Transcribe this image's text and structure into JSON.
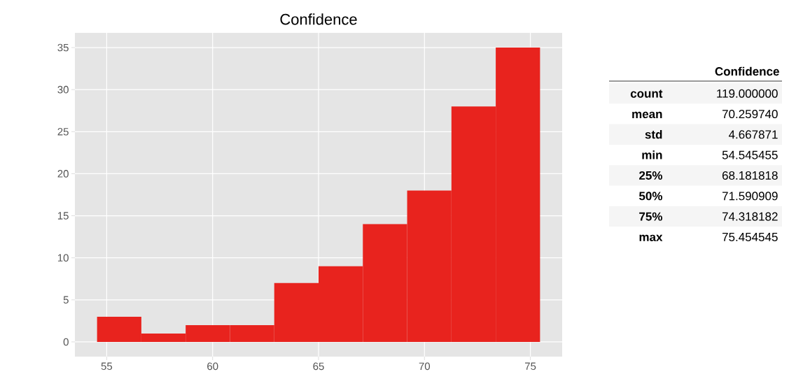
{
  "chart_data": [
    {
      "type": "histogram",
      "title": "Confidence",
      "bins": [
        54.545,
        56.636,
        58.727,
        60.818,
        62.909,
        65.0,
        67.091,
        69.182,
        71.273,
        73.364,
        75.455
      ],
      "values": [
        3,
        1,
        2,
        2,
        7,
        9,
        14,
        18,
        28,
        35
      ],
      "color": "#e8231e",
      "grid": true,
      "xlim": [
        53.5,
        76.5
      ],
      "ylim": [
        -1.75,
        36.75
      ],
      "xticks": [
        55,
        60,
        65,
        70,
        75
      ],
      "yticks": [
        0,
        5,
        10,
        15,
        20,
        25,
        30,
        35
      ]
    },
    {
      "type": "other",
      "title": "Confidence",
      "categories": [
        "count",
        "mean",
        "std",
        "min",
        "25%",
        "50%",
        "75%",
        "max"
      ],
      "value_labels": [
        "119.000000",
        "70.259740",
        "4.667871",
        "54.545455",
        "68.181818",
        "71.590909",
        "74.318182",
        "75.454545"
      ]
    }
  ]
}
